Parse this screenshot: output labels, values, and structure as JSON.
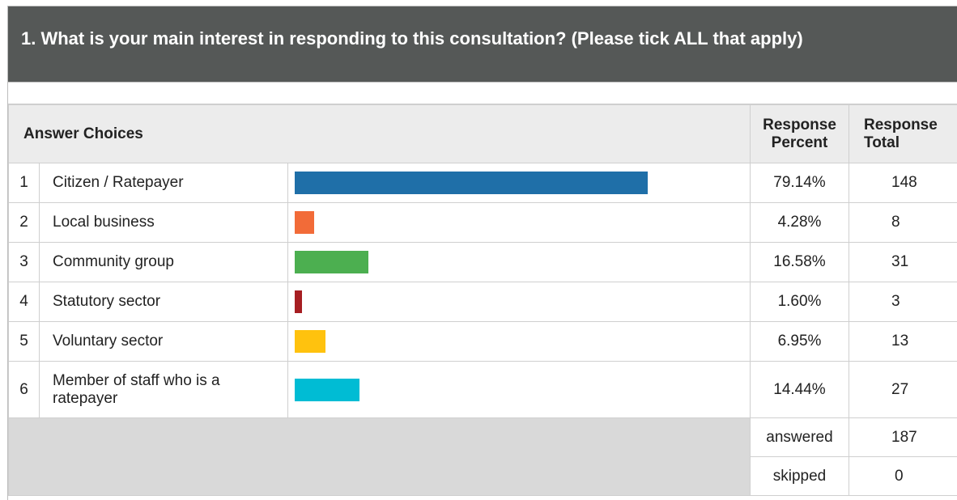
{
  "question": {
    "title": "1. What is your main interest in responding to this consultation? (Please tick ALL that apply)"
  },
  "headers": {
    "answer_choices": "Answer Choices",
    "response_percent": "Response Percent",
    "response_total": "Response Total"
  },
  "rows": [
    {
      "n": "1",
      "label": "Citizen / Ratepayer",
      "percent": "79.14%",
      "total": "148",
      "value": 79.14,
      "color": "#1f6fa8"
    },
    {
      "n": "2",
      "label": "Local business",
      "percent": "4.28%",
      "total": "8",
      "value": 4.28,
      "color": "#f26b38"
    },
    {
      "n": "3",
      "label": "Community group",
      "percent": "16.58%",
      "total": "31",
      "value": 16.58,
      "color": "#4caf50"
    },
    {
      "n": "4",
      "label": "Statutory sector",
      "percent": "1.60%",
      "total": "3",
      "value": 1.6,
      "color": "#a61e22"
    },
    {
      "n": "5",
      "label": "Voluntary sector",
      "percent": "6.95%",
      "total": "13",
      "value": 6.95,
      "color": "#ffc20e"
    },
    {
      "n": "6",
      "label": "Member of staff who is a ratepayer",
      "percent": "14.44%",
      "total": "27",
      "value": 14.44,
      "color": "#00bcd4"
    }
  ],
  "summary": {
    "answered_label": "answered",
    "answered_value": "187",
    "skipped_label": "skipped",
    "skipped_value": "0"
  }
}
